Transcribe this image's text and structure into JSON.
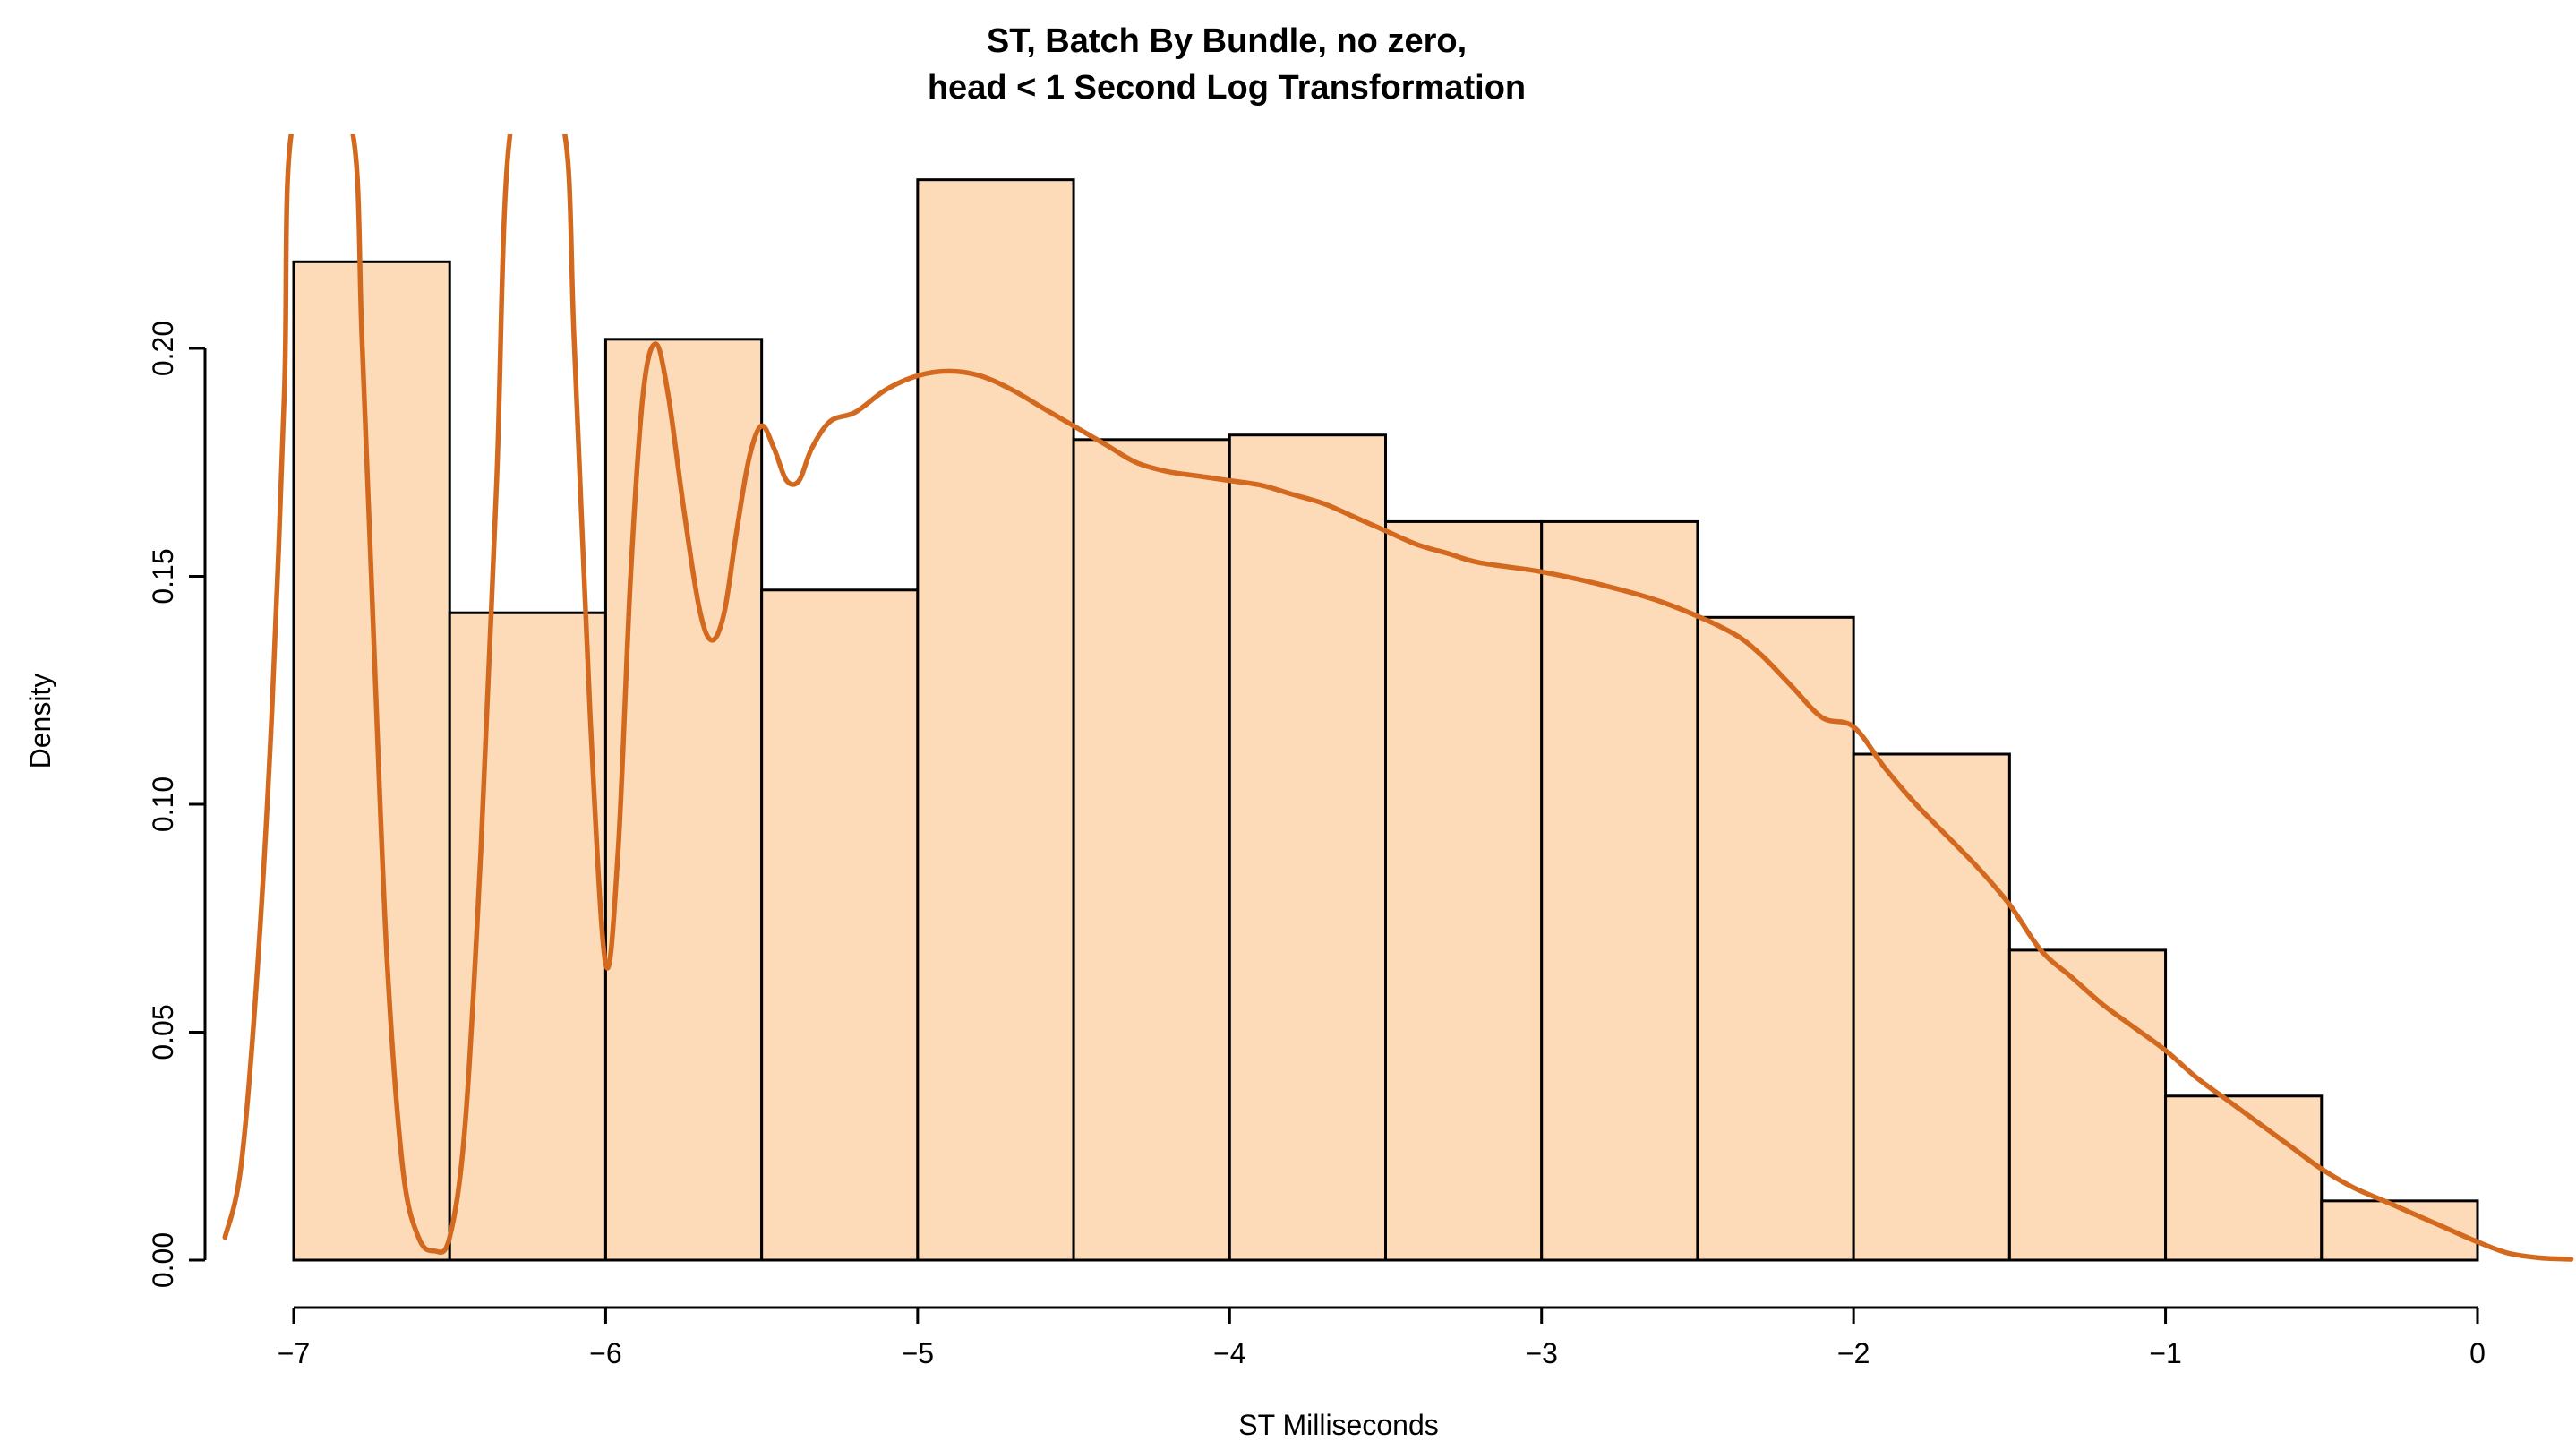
{
  "chart_data": {
    "type": "bar",
    "title": [
      "ST, Batch By Bundle, no zero,",
      "head < 1 Second Log Transformation"
    ],
    "xlabel": "ST Milliseconds",
    "ylabel": "Density",
    "xlim": [
      -7.2,
      0.3
    ],
    "ylim": [
      0,
      0.25
    ],
    "x_ticks": [
      -7,
      -6,
      -5,
      -4,
      -3,
      -2,
      -1,
      0
    ],
    "x_tick_labels": [
      "−7",
      "−6",
      "−5",
      "−4",
      "−3",
      "−2",
      "−1",
      "0"
    ],
    "y_ticks": [
      0,
      0.05,
      0.1,
      0.15,
      0.2
    ],
    "y_tick_labels": [
      "0.00",
      "0.05",
      "0.10",
      "0.15",
      "0.20"
    ],
    "bins": [
      {
        "start": -7.0,
        "end": -6.5,
        "density": 0.219
      },
      {
        "start": -6.5,
        "end": -6.0,
        "density": 0.142
      },
      {
        "start": -6.0,
        "end": -5.5,
        "density": 0.202
      },
      {
        "start": -5.5,
        "end": -5.0,
        "density": 0.147
      },
      {
        "start": -5.0,
        "end": -4.5,
        "density": 0.237
      },
      {
        "start": -4.5,
        "end": -4.0,
        "density": 0.18
      },
      {
        "start": -4.0,
        "end": -3.5,
        "density": 0.181
      },
      {
        "start": -3.5,
        "end": -3.0,
        "density": 0.162
      },
      {
        "start": -3.0,
        "end": -2.5,
        "density": 0.162
      },
      {
        "start": -2.5,
        "end": -2.0,
        "density": 0.141
      },
      {
        "start": -2.0,
        "end": -1.5,
        "density": 0.111
      },
      {
        "start": -1.5,
        "end": -1.0,
        "density": 0.068
      },
      {
        "start": -1.0,
        "end": -0.5,
        "density": 0.036
      },
      {
        "start": -0.5,
        "end": 0.0,
        "density": 0.013
      }
    ],
    "density_curve": {
      "color": "#D2691E",
      "points": [
        [
          -7.22,
          0.005
        ],
        [
          -7.17,
          0.02
        ],
        [
          -7.12,
          0.06
        ],
        [
          -7.07,
          0.12
        ],
        [
          -7.03,
          0.19
        ],
        [
          -7.0,
          0.25
        ],
        [
          -6.82,
          0.25
        ],
        [
          -6.78,
          0.2
        ],
        [
          -6.74,
          0.13
        ],
        [
          -6.7,
          0.065
        ],
        [
          -6.65,
          0.02
        ],
        [
          -6.6,
          0.005
        ],
        [
          -6.55,
          0.002
        ],
        [
          -6.5,
          0.005
        ],
        [
          -6.45,
          0.03
        ],
        [
          -6.4,
          0.09
        ],
        [
          -6.35,
          0.17
        ],
        [
          -6.3,
          0.25
        ],
        [
          -6.14,
          0.25
        ],
        [
          -6.1,
          0.2
        ],
        [
          -6.05,
          0.12
        ],
        [
          -6.0,
          0.065
        ],
        [
          -5.96,
          0.09
        ],
        [
          -5.92,
          0.15
        ],
        [
          -5.88,
          0.19
        ],
        [
          -5.84,
          0.201
        ],
        [
          -5.8,
          0.19
        ],
        [
          -5.75,
          0.165
        ],
        [
          -5.7,
          0.143
        ],
        [
          -5.66,
          0.136
        ],
        [
          -5.62,
          0.142
        ],
        [
          -5.58,
          0.16
        ],
        [
          -5.54,
          0.176
        ],
        [
          -5.5,
          0.183
        ],
        [
          -5.46,
          0.178
        ],
        [
          -5.42,
          0.171
        ],
        [
          -5.38,
          0.171
        ],
        [
          -5.34,
          0.178
        ],
        [
          -5.28,
          0.184
        ],
        [
          -5.2,
          0.186
        ],
        [
          -5.1,
          0.191
        ],
        [
          -5.0,
          0.194
        ],
        [
          -4.9,
          0.195
        ],
        [
          -4.8,
          0.194
        ],
        [
          -4.7,
          0.191
        ],
        [
          -4.6,
          0.187
        ],
        [
          -4.5,
          0.183
        ],
        [
          -4.4,
          0.179
        ],
        [
          -4.3,
          0.175
        ],
        [
          -4.2,
          0.173
        ],
        [
          -4.1,
          0.172
        ],
        [
          -4.0,
          0.171
        ],
        [
          -3.9,
          0.17
        ],
        [
          -3.8,
          0.168
        ],
        [
          -3.7,
          0.166
        ],
        [
          -3.6,
          0.163
        ],
        [
          -3.5,
          0.16
        ],
        [
          -3.4,
          0.157
        ],
        [
          -3.3,
          0.155
        ],
        [
          -3.2,
          0.153
        ],
        [
          -3.0,
          0.151
        ],
        [
          -2.8,
          0.148
        ],
        [
          -2.6,
          0.144
        ],
        [
          -2.4,
          0.138
        ],
        [
          -2.3,
          0.133
        ],
        [
          -2.2,
          0.126
        ],
        [
          -2.1,
          0.119
        ],
        [
          -2.0,
          0.117
        ],
        [
          -1.9,
          0.108
        ],
        [
          -1.8,
          0.1
        ],
        [
          -1.7,
          0.093
        ],
        [
          -1.6,
          0.086
        ],
        [
          -1.5,
          0.078
        ],
        [
          -1.4,
          0.068
        ],
        [
          -1.3,
          0.062
        ],
        [
          -1.2,
          0.056
        ],
        [
          -1.1,
          0.051
        ],
        [
          -1.0,
          0.046
        ],
        [
          -0.9,
          0.04
        ],
        [
          -0.8,
          0.035
        ],
        [
          -0.7,
          0.03
        ],
        [
          -0.6,
          0.025
        ],
        [
          -0.5,
          0.02
        ],
        [
          -0.4,
          0.016
        ],
        [
          -0.3,
          0.013
        ],
        [
          -0.2,
          0.01
        ],
        [
          -0.1,
          0.007
        ],
        [
          0.0,
          0.004
        ],
        [
          0.1,
          0.0015
        ],
        [
          0.2,
          0.0005
        ],
        [
          0.3,
          0.0002
        ]
      ]
    },
    "colors": {
      "bar_fill": "#FDDAB8",
      "bar_stroke": "#000000",
      "curve": "#D2691E"
    },
    "grid": false,
    "legend": "none"
  }
}
